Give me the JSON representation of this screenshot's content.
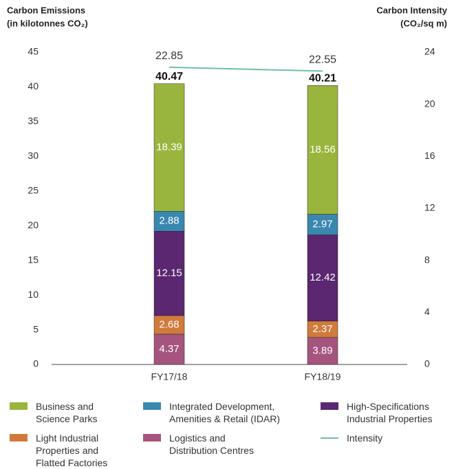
{
  "chart_data": {
    "type": "bar",
    "y_title": "Carbon Emissions",
    "y_subtitle": "(in kilotonnes CO₂)",
    "y2_title": "Carbon Intensity",
    "y2_subtitle": "(CO₂/sq m)",
    "categories": [
      "FY17/18",
      "FY18/19"
    ],
    "stacked": true,
    "series": [
      {
        "name": "Logistics and Distribution Centres",
        "color": "#a5547e",
        "values": [
          4.37,
          3.89
        ]
      },
      {
        "name": "Light Industrial Properties and Flatted Factories",
        "color": "#d07a3c",
        "values": [
          2.68,
          2.37
        ]
      },
      {
        "name": "High-Specifications Industrial Properties",
        "color": "#5a2770",
        "values": [
          12.15,
          12.42
        ]
      },
      {
        "name": "Integrated Development, Amenities & Retail (IDAR)",
        "color": "#3a87b0",
        "values": [
          2.88,
          2.97
        ]
      },
      {
        "name": "Business and Science Parks",
        "color": "#9ab53d",
        "values": [
          18.39,
          18.56
        ]
      },
      {
        "name": "Intensity",
        "color": "#6bbfa8",
        "type": "line",
        "axis": "y2",
        "values": [
          22.85,
          22.55
        ]
      }
    ],
    "totals": [
      40.47,
      40.21
    ],
    "ylim": [
      0,
      45
    ],
    "yticks": [
      0,
      5,
      10,
      15,
      20,
      25,
      30,
      35,
      40,
      45
    ],
    "y2lim": [
      0,
      24
    ],
    "y2ticks": [
      0,
      4,
      8,
      12,
      16,
      20,
      24
    ]
  }
}
